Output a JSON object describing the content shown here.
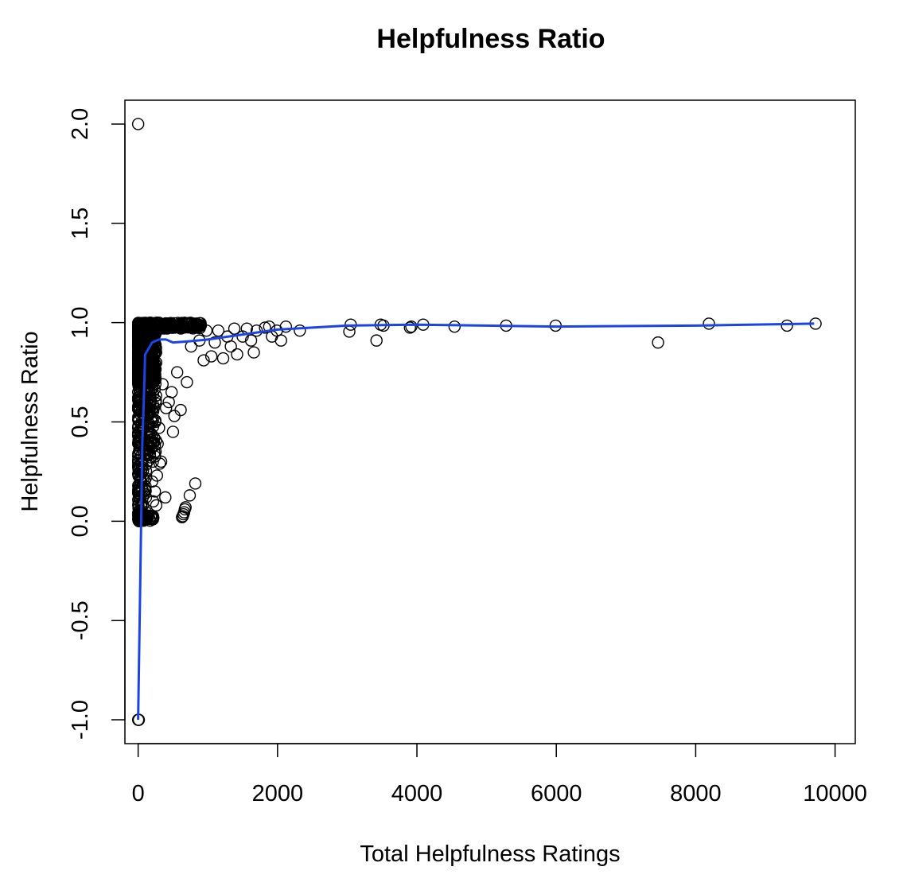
{
  "chart_data": {
    "type": "scatter",
    "title": "Helpfulness Ratio",
    "xlabel": "Total Helpfulness Ratings",
    "ylabel": "Helpfulness Ratio",
    "xlim": [
      -190,
      10290
    ],
    "ylim": [
      -1.12,
      2.12
    ],
    "x_ticks": [
      0,
      2000,
      4000,
      6000,
      8000,
      10000
    ],
    "x_tick_labels": [
      "0",
      "2000",
      "4000",
      "6000",
      "8000",
      "10000"
    ],
    "y_ticks": [
      -1.0,
      -0.5,
      0.0,
      0.5,
      1.0,
      1.5,
      2.0
    ],
    "y_tick_labels": [
      "-1.0",
      "-0.5",
      "0.0",
      "0.5",
      "1.0",
      "1.5",
      "2.0"
    ],
    "grid": false,
    "point_color": "#000000",
    "smooth_color": "#1a44e6",
    "points": [
      [
        0,
        2.0
      ],
      [
        0,
        -1.0
      ],
      [
        5,
        -1.0
      ],
      [
        10,
        -1.0
      ],
      [
        3050,
        0.99
      ],
      [
        3030,
        0.955
      ],
      [
        3420,
        0.91
      ],
      [
        3480,
        0.99
      ],
      [
        3520,
        0.985
      ],
      [
        3900,
        0.975
      ],
      [
        3920,
        0.98
      ],
      [
        4090,
        0.99
      ],
      [
        4540,
        0.98
      ],
      [
        5280,
        0.985
      ],
      [
        5990,
        0.985
      ],
      [
        7460,
        0.9
      ],
      [
        8190,
        0.995
      ],
      [
        9310,
        0.985
      ],
      [
        9720,
        0.995
      ],
      [
        2320,
        0.96
      ],
      [
        2120,
        0.98
      ],
      [
        2050,
        0.91
      ],
      [
        1990,
        0.96
      ],
      [
        1920,
        0.93
      ],
      [
        1880,
        0.98
      ],
      [
        1820,
        0.975
      ],
      [
        1700,
        0.96
      ],
      [
        1660,
        0.85
      ],
      [
        1620,
        0.91
      ],
      [
        1560,
        0.97
      ],
      [
        1500,
        0.93
      ],
      [
        1420,
        0.84
      ],
      [
        1380,
        0.97
      ],
      [
        1330,
        0.88
      ],
      [
        1280,
        0.93
      ],
      [
        1220,
        0.82
      ],
      [
        1150,
        0.96
      ],
      [
        1100,
        0.9
      ],
      [
        1050,
        0.83
      ],
      [
        980,
        0.96
      ],
      [
        940,
        0.81
      ],
      [
        880,
        0.91
      ],
      [
        820,
        0.19
      ],
      [
        760,
        0.88
      ],
      [
        740,
        0.13
      ],
      [
        700,
        0.7
      ],
      [
        680,
        0.07
      ],
      [
        670,
        0.06
      ],
      [
        660,
        0.045
      ],
      [
        650,
        0.035
      ],
      [
        640,
        0.025
      ],
      [
        630,
        0.02
      ],
      [
        610,
        0.56
      ],
      [
        560,
        0.75
      ],
      [
        520,
        0.53
      ],
      [
        500,
        0.45
      ],
      [
        480,
        0.65
      ],
      [
        440,
        0.6
      ],
      [
        400,
        0.57
      ],
      [
        390,
        0.12
      ],
      [
        350,
        0.69
      ],
      [
        330,
        0.3
      ],
      [
        310,
        0.29
      ],
      [
        300,
        0.47
      ],
      [
        280,
        0.39
      ],
      [
        270,
        0.23
      ],
      [
        260,
        0.08
      ],
      [
        250,
        0.35
      ],
      [
        240,
        0.15
      ],
      [
        230,
        0.42
      ],
      [
        215,
        0.1
      ],
      [
        210,
        0.3
      ],
      [
        205,
        0.55
      ],
      [
        200,
        0.2
      ]
    ],
    "smooth": [
      [
        0,
        -1.0
      ],
      [
        30,
        -0.3
      ],
      [
        60,
        0.4
      ],
      [
        80,
        0.6
      ],
      [
        100,
        0.84
      ],
      [
        150,
        0.87
      ],
      [
        200,
        0.9
      ],
      [
        300,
        0.915
      ],
      [
        400,
        0.915
      ],
      [
        500,
        0.9
      ],
      [
        700,
        0.905
      ],
      [
        1000,
        0.915
      ],
      [
        1500,
        0.94
      ],
      [
        2000,
        0.965
      ],
      [
        2500,
        0.975
      ],
      [
        3000,
        0.985
      ],
      [
        4000,
        0.99
      ],
      [
        5000,
        0.985
      ],
      [
        6000,
        0.98
      ],
      [
        8000,
        0.985
      ],
      [
        9700,
        0.995
      ]
    ]
  }
}
